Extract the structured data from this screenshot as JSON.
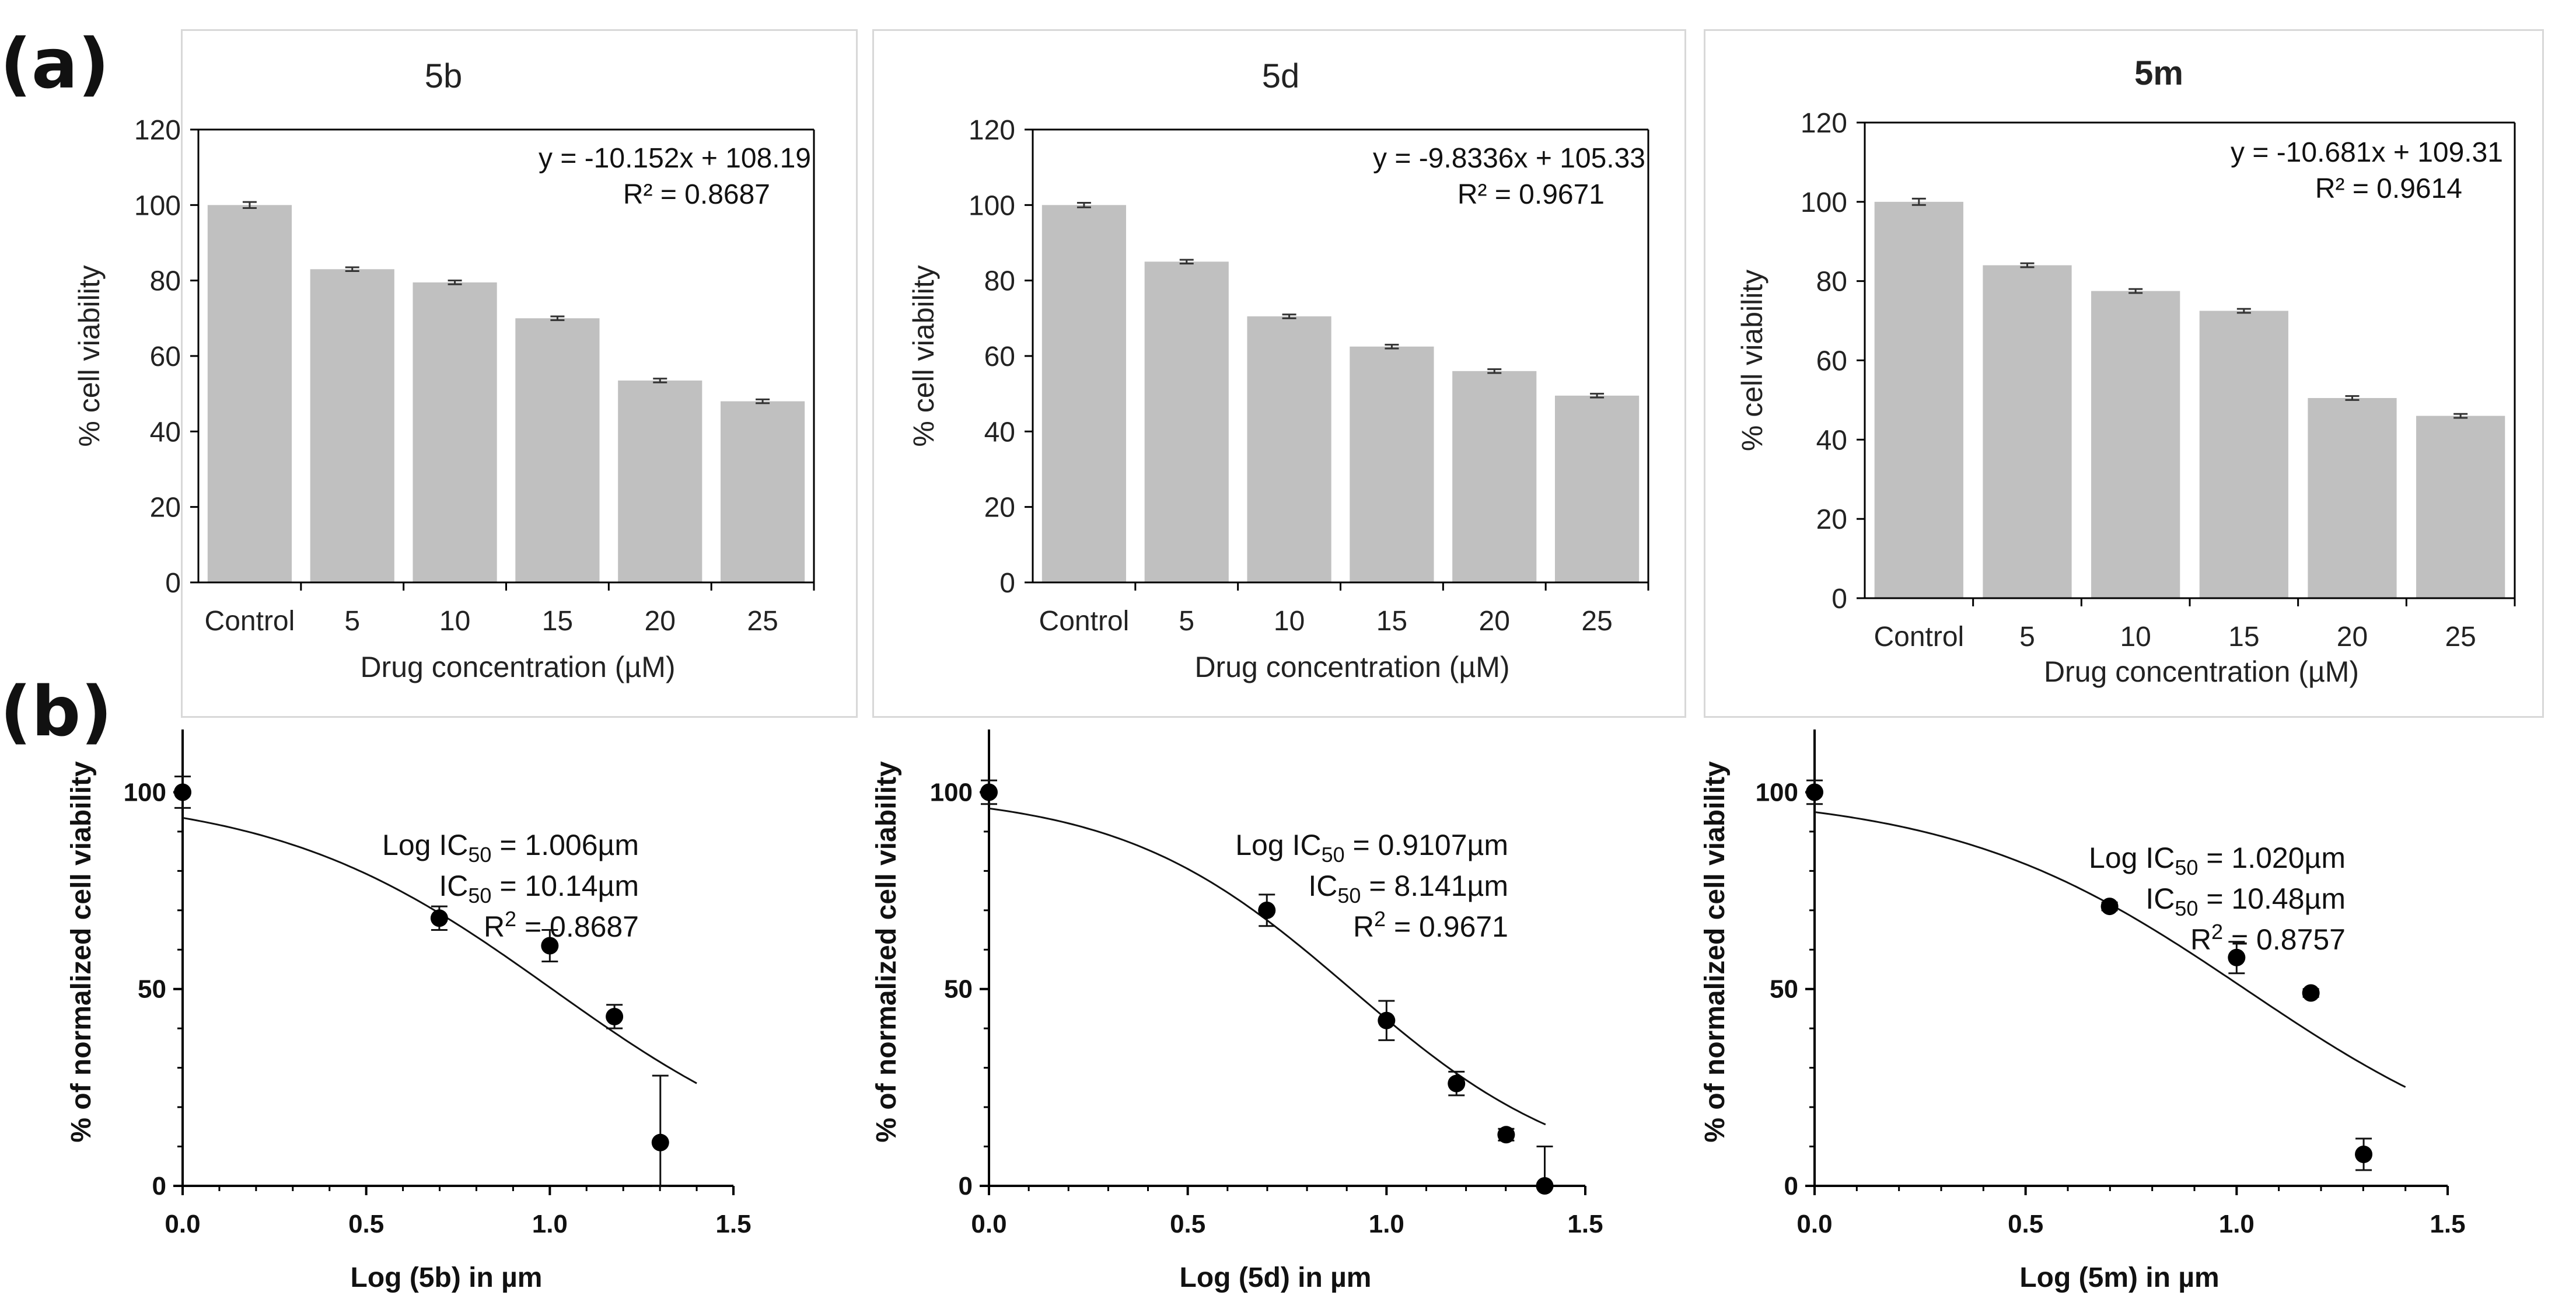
{
  "panel_labels": {
    "a": "(a)",
    "b": "(b)"
  },
  "style": {
    "bar_color": "#c0c0c0",
    "axis_color": "#000000",
    "marker_color": "#000000",
    "frame_color": "#d8d8d8"
  },
  "chart_data": [
    {
      "type": "bar",
      "title": "5b",
      "categories": [
        "Control",
        "5",
        "10",
        "15",
        "20",
        "25"
      ],
      "values": [
        100,
        83,
        79.5,
        70,
        53.5,
        48
      ],
      "errors": [
        0.8,
        0.5,
        0.5,
        0.5,
        0.5,
        0.5
      ],
      "ylim": [
        0,
        120
      ],
      "yticks": [
        0,
        20,
        40,
        60,
        80,
        100,
        120
      ],
      "xlabel": "Drug concentration (µM)",
      "ylabel": "% cell viability",
      "annotation": [
        "y = -10.152x + 108.19",
        "R² = 0.8687"
      ]
    },
    {
      "type": "bar",
      "title": "5d",
      "categories": [
        "Control",
        "5",
        "10",
        "15",
        "20",
        "25"
      ],
      "values": [
        100,
        85,
        70.5,
        62.5,
        56,
        49.5
      ],
      "errors": [
        0.6,
        0.5,
        0.5,
        0.5,
        0.5,
        0.5
      ],
      "ylim": [
        0,
        120
      ],
      "yticks": [
        0,
        20,
        40,
        60,
        80,
        100,
        120
      ],
      "xlabel": "Drug concentration (µM)",
      "ylabel": "% cell viability",
      "annotation": [
        "y = -9.8336x + 105.33",
        "R² = 0.9671"
      ]
    },
    {
      "type": "bar",
      "title": "5m",
      "categories": [
        "Control",
        "5",
        "10",
        "15",
        "20",
        "25"
      ],
      "values": [
        100,
        84,
        77.5,
        72.5,
        50.5,
        46
      ],
      "errors": [
        0.8,
        0.5,
        0.5,
        0.5,
        0.5,
        0.5
      ],
      "ylim": [
        0,
        120
      ],
      "yticks": [
        0,
        20,
        40,
        60,
        80,
        100,
        120
      ],
      "xlabel": "Drug concentration (µM)",
      "ylabel": "% cell viability",
      "annotation": [
        "y = -10.681x + 109.31",
        "R² = 0.9614"
      ]
    },
    {
      "type": "scatter",
      "points": {
        "x": [
          0,
          0.699,
          1.0,
          1.176,
          1.301
        ],
        "y": [
          100,
          68,
          61,
          43,
          11
        ],
        "err": [
          4,
          3,
          4,
          3,
          17
        ]
      },
      "fit": {
        "type": "sigmoid",
        "logIC50": 1.006,
        "top": 100,
        "bottom": 0,
        "hill": 1.15,
        "x_range": [
          0,
          1.4
        ]
      },
      "xlim": [
        0,
        1.5
      ],
      "ylim": [
        0,
        110
      ],
      "xticks": [
        0.0,
        0.5,
        1.0,
        1.5
      ],
      "xtick_labels": [
        "0.0",
        "0.5",
        "1.0",
        "1.5"
      ],
      "yticks": [
        0,
        50,
        100
      ],
      "ytick_labels": [
        "0",
        "50",
        "100"
      ],
      "xlabel": "Log (5b) in µm",
      "ylabel": "% of normalized cell viability",
      "annotation": [
        {
          "pre": "Log IC",
          "sub": "50",
          "post": " = 1.006µm"
        },
        {
          "pre": "IC",
          "sub": "50",
          "post": " = 10.14µm"
        },
        {
          "pre": "R",
          "sup": "2",
          "post": " = 0.8687"
        }
      ]
    },
    {
      "type": "scatter",
      "points": {
        "x": [
          0,
          0.699,
          1.0,
          1.176,
          1.301,
          1.398
        ],
        "y": [
          100,
          70,
          42,
          26,
          13,
          0
        ],
        "err": [
          3,
          4,
          5,
          3,
          1.5,
          10
        ]
      },
      "fit": {
        "type": "sigmoid",
        "logIC50": 0.9107,
        "top": 100,
        "bottom": 0,
        "hill": 1.5,
        "x_range": [
          0,
          1.4
        ]
      },
      "xlim": [
        0,
        1.5
      ],
      "ylim": [
        0,
        110
      ],
      "xticks": [
        0.0,
        0.5,
        1.0,
        1.5
      ],
      "xtick_labels": [
        "0.0",
        "0.5",
        "1.0",
        "1.5"
      ],
      "yticks": [
        0,
        50,
        100
      ],
      "ytick_labels": [
        "0",
        "50",
        "100"
      ],
      "xlabel": "Log (5d) in µm",
      "ylabel": "% of normalized cell viability",
      "annotation": [
        {
          "pre": "Log IC",
          "sub": "50",
          "post": " = 0.9107µm"
        },
        {
          "pre": "IC",
          "sub": "50",
          "post": " = 8.141µm"
        },
        {
          "pre": "R",
          "sup": "2",
          "post": " = 0.9671"
        }
      ]
    },
    {
      "type": "scatter",
      "points": {
        "x": [
          0,
          0.699,
          1.0,
          1.176,
          1.301
        ],
        "y": [
          100,
          71,
          58,
          49,
          8
        ],
        "err": [
          3,
          1,
          4,
          1,
          4
        ]
      },
      "fit": {
        "type": "sigmoid",
        "logIC50": 1.02,
        "top": 100,
        "bottom": 0,
        "hill": 1.25,
        "x_range": [
          0,
          1.4
        ]
      },
      "xlim": [
        0,
        1.5
      ],
      "ylim": [
        0,
        110
      ],
      "xticks": [
        0.0,
        0.5,
        1.0,
        1.5
      ],
      "xtick_labels": [
        "0.0",
        "0.5",
        "1.0",
        "1.5"
      ],
      "yticks": [
        0,
        50,
        100
      ],
      "ytick_labels": [
        "0",
        "50",
        "100"
      ],
      "xlabel": "Log (5m) in µm",
      "ylabel": "% of normalized cell viability",
      "annotation": [
        {
          "pre": "Log IC",
          "sub": "50",
          "post": " = 1.020µm"
        },
        {
          "pre": "IC",
          "sub": "50",
          "post": " = 10.48µm"
        },
        {
          "pre": "R",
          "sup": "2",
          "post": " = 0.8757"
        }
      ]
    }
  ]
}
